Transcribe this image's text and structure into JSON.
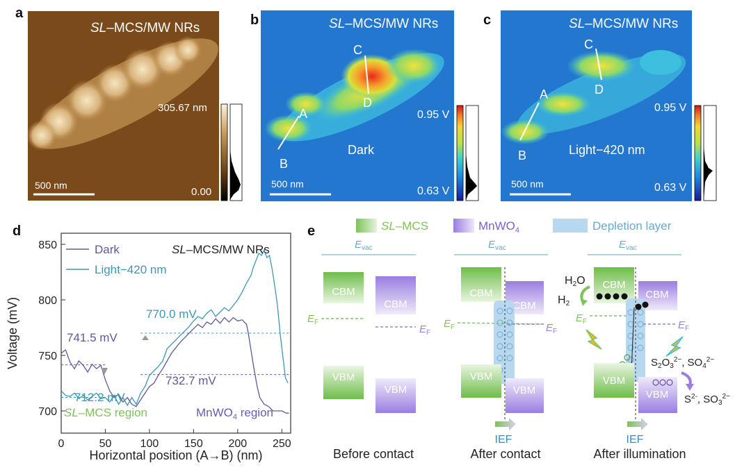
{
  "panel_labels": {
    "a": "a",
    "b": "b",
    "c": "c",
    "d": "d",
    "e": "e"
  },
  "afm": {
    "title_italic": "SL",
    "title_rest": "–MCS/MW NRs",
    "scale_bar": "500 nm",
    "colorbar_max": "305.67 nm",
    "colorbar_min": "0.00"
  },
  "kpfm_dark": {
    "title_italic": "SL",
    "title_rest": "–MCS/MW NRs",
    "condition": "Dark",
    "scale_bar": "500 nm",
    "vmax": "0.95 V",
    "vmin": "0.63 V",
    "points": [
      "A",
      "B",
      "C",
      "D"
    ]
  },
  "kpfm_light": {
    "title_italic": "SL",
    "title_rest": "–MCS/MW NRs",
    "condition": "Light−420 nm",
    "scale_bar": "500 nm",
    "vmax": "0.95 V",
    "vmin": "0.63 V",
    "points": [
      "A",
      "B",
      "C",
      "D"
    ]
  },
  "profile": {
    "title_italic": "SL",
    "title_rest": "–MCS/MW NRs",
    "region_left_italic": "SL",
    "region_left_rest": "–MCS region",
    "region_right_main": "MnWO",
    "region_right_sub": "4",
    "region_right_rest": " region",
    "ann_dark_left": "741.5 mV",
    "ann_light_left": "712.2 mV",
    "ann_light_right": "770.0 mV",
    "ann_dark_right": "732.7 mV"
  },
  "chart_data": {
    "type": "line",
    "xlabel": "Horizontal position (A→B) (nm)",
    "ylabel": "Voltage (mV)",
    "xlim": [
      0,
      260
    ],
    "ylim": [
      680,
      860
    ],
    "xticks": [
      0,
      50,
      100,
      150,
      200,
      250
    ],
    "yticks": [
      700,
      750,
      800,
      850
    ],
    "series": [
      {
        "name": "Dark",
        "color": "#5a5a9c",
        "x": [
          0,
          5,
          10,
          15,
          20,
          25,
          30,
          35,
          40,
          45,
          50,
          55,
          60,
          65,
          70,
          75,
          80,
          85,
          90,
          95,
          100,
          105,
          110,
          115,
          120,
          125,
          130,
          135,
          140,
          145,
          150,
          155,
          160,
          165,
          170,
          175,
          180,
          185,
          190,
          195,
          200,
          205,
          210,
          212,
          215,
          218,
          222,
          225,
          230,
          235,
          240,
          245,
          250,
          255,
          258
        ],
        "y": [
          752,
          755,
          744,
          738,
          745,
          741,
          735,
          742,
          738,
          741,
          728,
          718,
          712,
          715,
          708,
          712,
          706,
          704,
          710,
          716,
          722,
          725,
          732,
          738,
          745,
          752,
          757,
          762,
          766,
          770,
          774,
          778,
          775,
          780,
          778,
          783,
          779,
          784,
          780,
          784,
          781,
          782,
          778,
          770,
          755,
          740,
          722,
          712,
          706,
          704,
          700,
          700,
          700,
          698,
          698
        ]
      },
      {
        "name": "Light−420 nm",
        "color": "#3e96b6",
        "x": [
          0,
          5,
          10,
          15,
          20,
          25,
          30,
          35,
          40,
          45,
          50,
          55,
          60,
          65,
          70,
          75,
          80,
          85,
          90,
          95,
          100,
          105,
          110,
          115,
          120,
          125,
          130,
          135,
          140,
          145,
          150,
          155,
          160,
          165,
          170,
          175,
          180,
          185,
          190,
          195,
          200,
          205,
          210,
          215,
          218,
          221,
          224,
          227,
          230,
          233,
          236,
          239,
          242,
          245,
          248,
          251,
          254,
          257
        ],
        "y": [
          718,
          714,
          713,
          716,
          711,
          714,
          710,
          713,
          716,
          711,
          712,
          708,
          714,
          706,
          712,
          705,
          712,
          706,
          716,
          722,
          732,
          736,
          740,
          745,
          756,
          760,
          764,
          768,
          772,
          776,
          781,
          785,
          783,
          788,
          791,
          785,
          789,
          793,
          790,
          795,
          800,
          807,
          815,
          822,
          830,
          836,
          842,
          840,
          845,
          838,
          840,
          828,
          812,
          795,
          770,
          750,
          730,
          725
        ]
      }
    ]
  },
  "diagram": {
    "legend": {
      "slmcs_italic": "SL",
      "slmcs_rest": "–MCS",
      "mnwo_main": "MnWO",
      "mnwo_sub": "4",
      "depletion": "Depletion layer"
    },
    "evac_main": "E",
    "evac_sub": "vac",
    "ef_main": "E",
    "ef_sub": "F",
    "cbm": "CBM",
    "vbm": "VBM",
    "ief": "IEF",
    "h2o_main": "H",
    "h2o_sub": "2",
    "h2o_end": "O",
    "h2_main": "H",
    "h2_sub": "2",
    "ox_a": "S",
    "ox_a_sub": "2",
    "ox_b": "O",
    "ox_b_sub": "3",
    "ox_c_sup": "2−",
    "ox_sep": ", SO",
    "ox_d_sub": "4",
    "ox_d_sup": "2−",
    "red_a": "S",
    "red_a_sup": "2-",
    "red_sep": ", SO",
    "red_b_sub": "3",
    "red_b_sup": "2−",
    "caption_before": "Before contact",
    "caption_after": "After contact",
    "caption_illum": "After illumination"
  },
  "colors": {
    "green": "#7cc35a",
    "purple": "#9a7ee0",
    "depletion": "#b8d8f0",
    "evac": "#7ab8d8",
    "dark": "#5a5a9c",
    "light": "#3e96b6"
  }
}
